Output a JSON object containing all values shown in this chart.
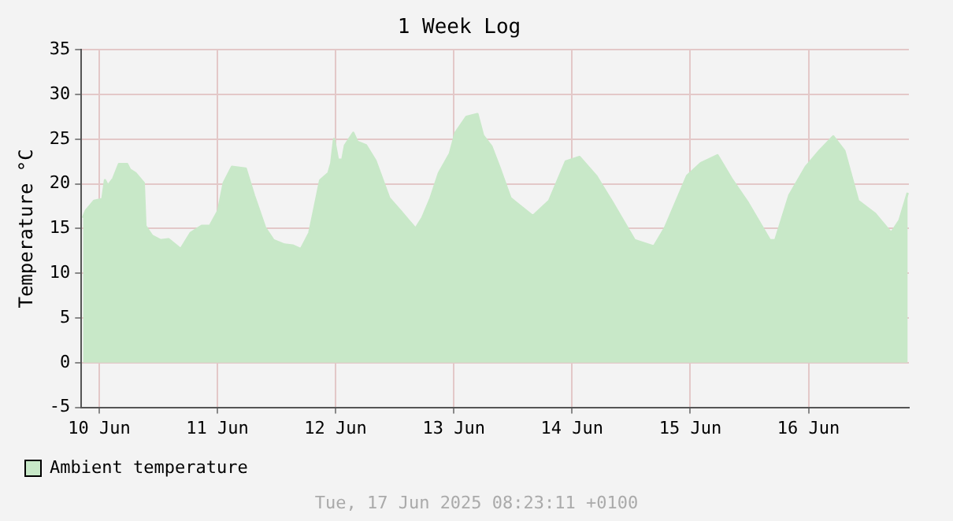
{
  "chart_data": {
    "type": "area",
    "title": "1 Week Log",
    "ylabel": "Temperature °C",
    "annotations": [
      "Tue, 17 Jun 2025 08:23:11 +0100"
    ],
    "xlim": [
      "2025-06-10T08:23",
      "2025-06-17T08:23"
    ],
    "xticks": [
      {
        "value": "2025-06-10T12:00",
        "label": "10 Jun"
      },
      {
        "value": "2025-06-11T12:00",
        "label": "11 Jun"
      },
      {
        "value": "2025-06-12T12:00",
        "label": "12 Jun"
      },
      {
        "value": "2025-06-13T12:00",
        "label": "13 Jun"
      },
      {
        "value": "2025-06-14T12:00",
        "label": "14 Jun"
      },
      {
        "value": "2025-06-15T12:00",
        "label": "15 Jun"
      },
      {
        "value": "2025-06-16T12:00",
        "label": "16 Jun"
      }
    ],
    "ylim": [
      -5,
      35
    ],
    "yticks": [
      -5,
      0,
      5,
      10,
      15,
      20,
      25,
      30,
      35
    ],
    "grid": true,
    "legend": "bottom left",
    "x": [
      "2025-06-10T08:43",
      "2025-06-10T09:17",
      "2025-06-10T10:58",
      "2025-06-10T12:39",
      "2025-06-10T13:11",
      "2025-06-10T13:46",
      "2025-06-10T14:52",
      "2025-06-10T16:01",
      "2025-06-10T17:41",
      "2025-06-10T18:14",
      "2025-06-10T19:22",
      "2025-06-10T21:03",
      "2025-06-10T21:23",
      "2025-06-10T22:44",
      "2025-06-11T00:25",
      "2025-06-11T02:05",
      "2025-06-11T04:33",
      "2025-06-11T06:34",
      "2025-06-11T08:49",
      "2025-06-11T10:29",
      "2025-06-11T12:10",
      "2025-06-11T13:17",
      "2025-06-11T14:58",
      "2025-06-11T17:45",
      "2025-06-11T19:26",
      "2025-06-11T21:41",
      "2025-06-11T23:22",
      "2025-06-12T01:37",
      "2025-06-12T03:17",
      "2025-06-12T04:58",
      "2025-06-12T06:39",
      "2025-06-12T07:25",
      "2025-06-12T08:52",
      "2025-06-12T10:33",
      "2025-06-12T11:07",
      "2025-06-12T11:41",
      "2025-06-12T12:28",
      "2025-06-12T13:22",
      "2025-06-12T13:54",
      "2025-06-12T15:35",
      "2025-06-12T16:24",
      "2025-06-12T18:11",
      "2025-06-12T20:05",
      "2025-06-12T22:53",
      "2025-06-13T01:08",
      "2025-06-13T02:49",
      "2025-06-13T04:15",
      "2025-06-13T05:36",
      "2025-06-13T07:17",
      "2025-06-13T08:58",
      "2025-06-13T11:13",
      "2025-06-13T12:19",
      "2025-06-13T14:34",
      "2025-06-13T16:47",
      "2025-06-13T17:56",
      "2025-06-13T19:37",
      "2025-06-13T21:17",
      "2025-06-13T23:30",
      "2025-06-14T04:01",
      "2025-06-14T07:22",
      "2025-06-14T10:44",
      "2025-06-14T13:31",
      "2025-06-14T16:53",
      "2025-06-14T20:14",
      "2025-06-15T00:42",
      "2025-06-15T04:38",
      "2025-06-15T06:53",
      "2025-06-15T11:22",
      "2025-06-15T14:09",
      "2025-06-15T17:31",
      "2025-06-15T20:20",
      "2025-06-15T23:41",
      "2025-06-16T04:10",
      "2025-06-16T05:16",
      "2025-06-16T08:06",
      "2025-06-16T11:27",
      "2025-06-16T14:14",
      "2025-06-16T17:02",
      "2025-06-16T19:17",
      "2025-06-16T22:04",
      "2025-06-17T01:26",
      "2025-06-17T04:47",
      "2025-06-17T06:28",
      "2025-06-17T08:09"
    ],
    "series": [
      {
        "name": "Ambient temperature",
        "color": "#c8e8c8",
        "values": [
          16.2,
          17.0,
          18.1,
          18.3,
          20.4,
          19.8,
          20.6,
          22.2,
          22.2,
          21.6,
          21.2,
          20.1,
          15.3,
          14.2,
          13.7,
          13.8,
          12.7,
          14.5,
          15.3,
          15.3,
          17.0,
          20.1,
          21.9,
          21.7,
          18.7,
          15.1,
          13.7,
          13.2,
          13.1,
          12.7,
          14.5,
          16.5,
          20.4,
          21.2,
          22.3,
          25.0,
          22.7,
          22.7,
          24.3,
          25.7,
          24.7,
          24.3,
          22.6,
          18.4,
          17.0,
          15.9,
          15.0,
          16.2,
          18.4,
          21.2,
          23.4,
          25.7,
          27.5,
          27.8,
          25.4,
          24.2,
          21.8,
          18.4,
          16.4,
          18.1,
          22.5,
          23.0,
          20.9,
          17.9,
          13.7,
          13.0,
          15.1,
          20.9,
          22.3,
          23.2,
          20.6,
          17.9,
          13.7,
          13.7,
          18.7,
          21.9,
          23.7,
          25.3,
          23.7,
          18.1,
          16.7,
          14.5,
          15.9,
          19.0
        ]
      }
    ]
  }
}
